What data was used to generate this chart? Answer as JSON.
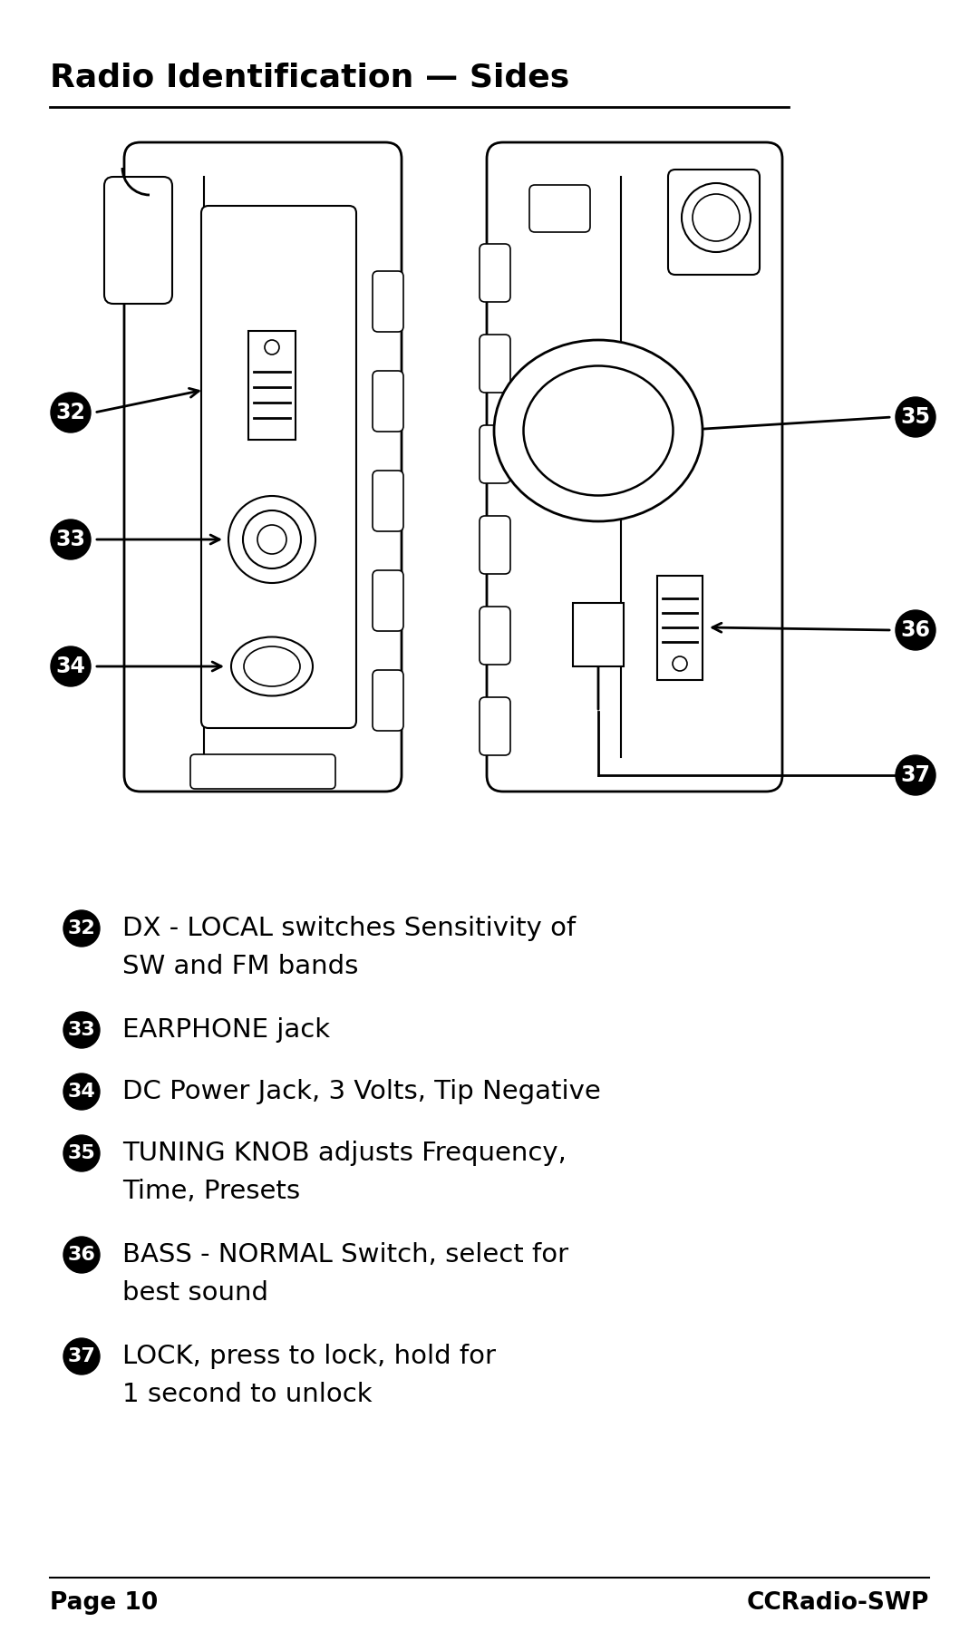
{
  "title": "Radio Identification — Sides",
  "bg_color": "#ffffff",
  "footer_left": "Page 10",
  "footer_right": "CCRadio-SWP",
  "items": [
    {
      "num": "32",
      "text": "DX - LOCAL switches Sensitivity of\nSW and FM bands"
    },
    {
      "num": "33",
      "text": "EARPHONE jack"
    },
    {
      "num": "34",
      "text": "DC Power Jack, 3 Volts, Tip Negative"
    },
    {
      "num": "35",
      "text": "TUNING KNOB adjusts Frequency,\nTime, Presets"
    },
    {
      "num": "36",
      "text": "BASS - NORMAL Switch, select for\nbest sound"
    },
    {
      "num": "37",
      "text": "LOCK, press to lock, hold for\n1 second to unlock"
    }
  ]
}
